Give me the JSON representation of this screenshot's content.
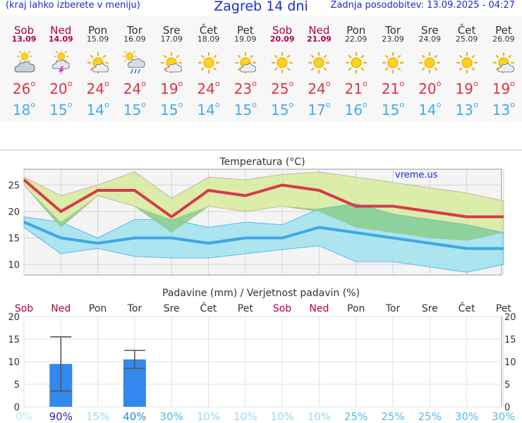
{
  "header": {
    "left_note": "(kraj lahko izberete v meniju)",
    "title": "Zagreb 14 dni",
    "updated": "Zadnja posodobitev: 13.09.2025 - 04:27"
  },
  "days": [
    {
      "name": "Sob",
      "date": "13.09",
      "icon": "cloudy-sun-icon",
      "tmax": "26",
      "tmin": "18",
      "weekend": true
    },
    {
      "name": "Ned",
      "date": "14.09",
      "icon": "storm-sun-icon",
      "tmax": "20",
      "tmin": "15",
      "weekend": true
    },
    {
      "name": "Pon",
      "date": "15.09",
      "icon": "partly-cloudy-icon",
      "tmax": "24",
      "tmin": "14",
      "weekend": false
    },
    {
      "name": "Tor",
      "date": "16.09",
      "icon": "rain-sun-icon",
      "tmax": "24",
      "tmin": "15",
      "weekend": false
    },
    {
      "name": "Sre",
      "date": "17.09",
      "icon": "partly-cloudy-icon",
      "tmax": "19",
      "tmin": "15",
      "weekend": false
    },
    {
      "name": "Čet",
      "date": "18.09",
      "icon": "sun-icon",
      "tmax": "24",
      "tmin": "14",
      "weekend": false
    },
    {
      "name": "Pet",
      "date": "19.09",
      "icon": "partly-cloudy-icon",
      "tmax": "23",
      "tmin": "15",
      "weekend": false
    },
    {
      "name": "Sob",
      "date": "20.09",
      "icon": "sun-icon",
      "tmax": "25",
      "tmin": "15",
      "weekend": true
    },
    {
      "name": "Ned",
      "date": "21.09",
      "icon": "sun-icon",
      "tmax": "24",
      "tmin": "17",
      "weekend": true
    },
    {
      "name": "Pon",
      "date": "22.09",
      "icon": "sun-icon",
      "tmax": "21",
      "tmin": "16",
      "weekend": false
    },
    {
      "name": "Tor",
      "date": "23.09",
      "icon": "sun-icon",
      "tmax": "21",
      "tmin": "15",
      "weekend": false
    },
    {
      "name": "Sre",
      "date": "24.09",
      "icon": "sun-icon",
      "tmax": "20",
      "tmin": "14",
      "weekend": false
    },
    {
      "name": "Čet",
      "date": "25.09",
      "icon": "sun-icon",
      "tmax": "19",
      "tmin": "13",
      "weekend": false
    },
    {
      "name": "Pet",
      "date": "26.09",
      "icon": "partly-cloudy-icon",
      "tmax": "19",
      "tmin": "13",
      "weekend": false
    }
  ],
  "colors": {
    "max_line": "#d9394a",
    "min_line": "#3ea8e6",
    "max_band": "#d6eb9a",
    "min_band": "#9fe0ee",
    "overlap": "#88cc88",
    "rain_bar": "#3388ee",
    "weekend": "#b0004e",
    "prob": "#66ccee"
  },
  "chart_data": [
    {
      "type": "line",
      "title": "Temperatura (°C)",
      "watermark": "vreme.us",
      "categories": [
        "Sob",
        "Ned",
        "Pon",
        "Tor",
        "Sre",
        "Čet",
        "Pet",
        "Sob",
        "Ned",
        "Pon",
        "Tor",
        "Sre",
        "Čet",
        "Pet"
      ],
      "ylim": [
        8,
        28
      ],
      "yticks": [
        10,
        15,
        20,
        25
      ],
      "grid": true,
      "series": [
        {
          "values": [
            26,
            20,
            24,
            24,
            19,
            24,
            23,
            25,
            24,
            21,
            21,
            20,
            19,
            19
          ]
        },
        {
          "values": [
            18,
            15,
            14,
            15,
            15,
            14,
            15,
            15,
            17,
            16,
            15,
            14,
            13,
            13
          ]
        }
      ],
      "max_band_high": [
        26.5,
        23,
        25,
        27.5,
        22.5,
        26.5,
        26,
        27,
        27.5,
        26.5,
        25.5,
        24.5,
        23.5,
        22
      ],
      "max_band_low": [
        25,
        17,
        23,
        21,
        16,
        21,
        20,
        21,
        20,
        17,
        16,
        15,
        14.5,
        16
      ],
      "min_band_high": [
        19,
        18,
        15,
        18.5,
        18.5,
        17,
        18,
        17.5,
        20.5,
        21.5,
        19.5,
        18.5,
        17.5,
        16
      ],
      "min_band_low": [
        17,
        12,
        13,
        11.5,
        11.2,
        11.2,
        12,
        12.8,
        13.5,
        10.5,
        10.5,
        9.5,
        8.5,
        10
      ]
    },
    {
      "type": "bar",
      "title": "Padavine (mm) / Verjetnost padavin (%)",
      "categories": [
        "Sob",
        "Ned",
        "Pon",
        "Tor",
        "Sre",
        "Čet",
        "Pet",
        "Sob",
        "Ned",
        "Pon",
        "Tor",
        "Sre",
        "Čet",
        "Pet"
      ],
      "ylim": [
        0,
        20
      ],
      "yticks": [
        0,
        5,
        10,
        15,
        20
      ],
      "values": [
        0,
        9.5,
        0,
        10.5,
        0,
        0,
        0,
        0,
        0,
        0,
        0,
        0,
        0,
        0
      ],
      "error_low": [
        null,
        3.5,
        null,
        8.5,
        null,
        null,
        null,
        null,
        null,
        null,
        null,
        null,
        null,
        null
      ],
      "error_high": [
        null,
        15.5,
        null,
        12.5,
        null,
        null,
        null,
        null,
        null,
        null,
        null,
        null,
        null,
        null
      ],
      "probability": [
        "0%",
        "90%",
        "15%",
        "40%",
        "30%",
        "10%",
        "10%",
        "10%",
        "10%",
        "25%",
        "25%",
        "25%",
        "30%",
        "30%"
      ]
    }
  ]
}
